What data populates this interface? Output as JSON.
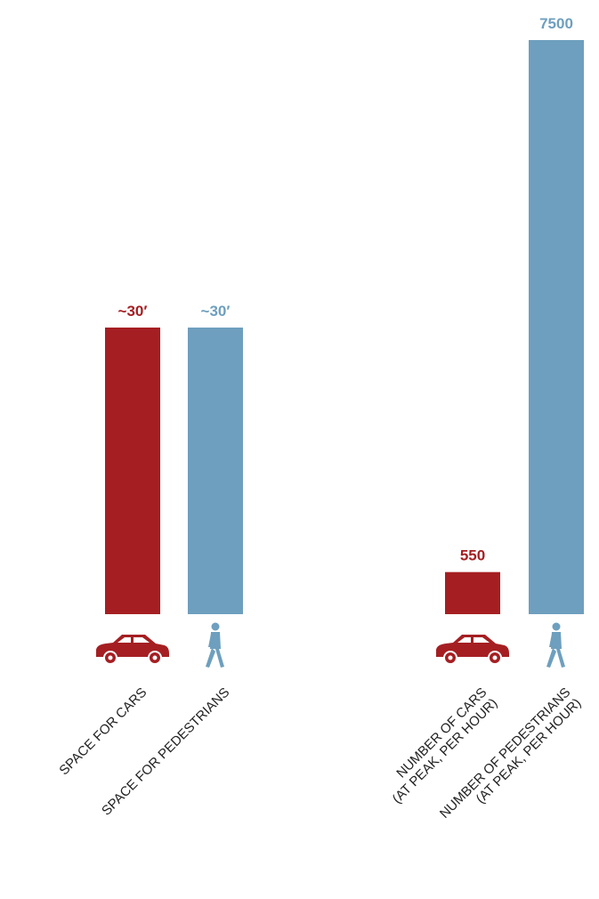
{
  "colors": {
    "car": "#a51f22",
    "pedestrian": "#6e9fbe"
  },
  "chart_data": [
    {
      "type": "bar",
      "categories": [
        "SPACE FOR CARS",
        "SPACE FOR PEDESTRIANS"
      ],
      "icons": [
        "car-icon",
        "pedestrian-icon"
      ],
      "values": [
        30,
        30
      ],
      "value_labels": [
        "~30′",
        "~30′"
      ],
      "bar_colors": [
        "#a51f22",
        "#6e9fbe"
      ],
      "ylim": [
        0,
        30
      ]
    },
    {
      "type": "bar",
      "categories": [
        [
          "NUMBER OF CARS",
          "(AT PEAK, PER HOUR)"
        ],
        [
          "NUMBER OF PEDESTRIANS",
          "(AT PEAK, PER HOUR)"
        ]
      ],
      "icons": [
        "car-icon",
        "pedestrian-icon"
      ],
      "values": [
        550,
        7500
      ],
      "value_labels": [
        "550",
        "7500"
      ],
      "bar_colors": [
        "#a51f22",
        "#6e9fbe"
      ],
      "ylim": [
        0,
        7500
      ]
    }
  ]
}
